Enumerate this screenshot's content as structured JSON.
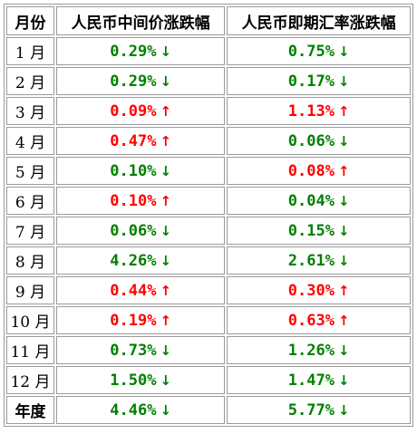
{
  "table": {
    "headers": [
      "月份",
      "人民币中间价涨跌幅",
      "人民币即期汇率涨跌幅"
    ],
    "rows": [
      {
        "month": "1 月",
        "mid": "0.29%",
        "mid_dir": "down",
        "spot": "0.75%",
        "spot_dir": "down"
      },
      {
        "month": "2 月",
        "mid": "0.29%",
        "mid_dir": "down",
        "spot": "0.17%",
        "spot_dir": "down"
      },
      {
        "month": "3 月",
        "mid": "0.09%",
        "mid_dir": "up",
        "spot": "1.13%",
        "spot_dir": "up"
      },
      {
        "month": "4 月",
        "mid": "0.47%",
        "mid_dir": "up",
        "spot": "0.06%",
        "spot_dir": "down"
      },
      {
        "month": "5 月",
        "mid": "0.10%",
        "mid_dir": "down",
        "spot": "0.08%",
        "spot_dir": "up"
      },
      {
        "month": "6 月",
        "mid": "0.10%",
        "mid_dir": "up",
        "spot": "0.04%",
        "spot_dir": "down"
      },
      {
        "month": "7 月",
        "mid": "0.06%",
        "mid_dir": "down",
        "spot": "0.15%",
        "spot_dir": "down"
      },
      {
        "month": "8 月",
        "mid": "4.26%",
        "mid_dir": "down",
        "spot": "2.61%",
        "spot_dir": "down"
      },
      {
        "month": "9 月",
        "mid": "0.44%",
        "mid_dir": "up",
        "spot": "0.30%",
        "spot_dir": "up"
      },
      {
        "month": "10 月",
        "mid": "0.19%",
        "mid_dir": "up",
        "spot": "0.63%",
        "spot_dir": "up"
      },
      {
        "month": "11 月",
        "mid": "0.73%",
        "mid_dir": "down",
        "spot": "1.26%",
        "spot_dir": "down"
      },
      {
        "month": "12 月",
        "mid": "1.50%",
        "mid_dir": "down",
        "spot": "1.47%",
        "spot_dir": "down"
      },
      {
        "month": "年度",
        "mid": "4.46%",
        "mid_dir": "down",
        "spot": "5.77%",
        "spot_dir": "down",
        "total": true
      }
    ]
  },
  "colors": {
    "up": "#ff0000",
    "down": "#008000",
    "border": "#9a9a9a"
  },
  "icons": {
    "up": "arrow-up-icon",
    "down": "arrow-down-icon"
  }
}
